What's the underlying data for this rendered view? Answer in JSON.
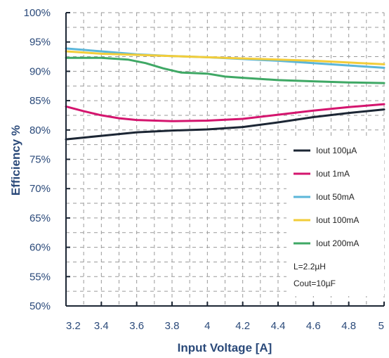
{
  "chart_data": {
    "type": "line",
    "xlabel": "Input Voltage [A]",
    "ylabel": "Efficiency %",
    "xlim": [
      3.2,
      5
    ],
    "ylim": [
      50,
      100
    ],
    "x_ticks": [
      "3.2",
      "3.4",
      "3.6",
      "3.8",
      "4",
      "4.2",
      "4.4",
      "4.6",
      "4.8",
      "5"
    ],
    "y_ticks": [
      "50%",
      "55%",
      "60%",
      "65%",
      "70%",
      "75%",
      "80%",
      "85%",
      "90%",
      "95%",
      "100%"
    ],
    "grid": "dashed",
    "legend_position": "bottom-right",
    "series": [
      {
        "name": "Iout 100µA",
        "color": "#1c2634",
        "points": [
          [
            3.2,
            78.4
          ],
          [
            3.4,
            79.0
          ],
          [
            3.6,
            79.6
          ],
          [
            3.8,
            79.9
          ],
          [
            4.0,
            80.1
          ],
          [
            4.2,
            80.5
          ],
          [
            4.4,
            81.3
          ],
          [
            4.6,
            82.2
          ],
          [
            4.8,
            82.9
          ],
          [
            5.0,
            83.5
          ]
        ]
      },
      {
        "name": "Iout 1mA",
        "color": "#d4156e",
        "points": [
          [
            3.2,
            84.0
          ],
          [
            3.3,
            83.2
          ],
          [
            3.4,
            82.5
          ],
          [
            3.5,
            82.0
          ],
          [
            3.6,
            81.7
          ],
          [
            3.8,
            81.5
          ],
          [
            4.0,
            81.6
          ],
          [
            4.2,
            81.9
          ],
          [
            4.4,
            82.6
          ],
          [
            4.6,
            83.3
          ],
          [
            4.8,
            83.9
          ],
          [
            5.0,
            84.4
          ]
        ]
      },
      {
        "name": "Iout 50mA",
        "color": "#5bb6d9",
        "points": [
          [
            3.2,
            93.9
          ],
          [
            3.4,
            93.4
          ],
          [
            3.6,
            92.9
          ],
          [
            3.8,
            92.6
          ],
          [
            4.0,
            92.4
          ],
          [
            4.2,
            92.1
          ],
          [
            4.4,
            91.8
          ],
          [
            4.6,
            91.4
          ],
          [
            4.8,
            91.0
          ],
          [
            5.0,
            90.6
          ]
        ]
      },
      {
        "name": "Iout 100mA",
        "color": "#f2cd3a",
        "points": [
          [
            3.2,
            93.4
          ],
          [
            3.4,
            93.0
          ],
          [
            3.6,
            92.8
          ],
          [
            3.8,
            92.6
          ],
          [
            4.0,
            92.4
          ],
          [
            4.2,
            92.2
          ],
          [
            4.4,
            92.0
          ],
          [
            4.6,
            91.8
          ],
          [
            4.8,
            91.5
          ],
          [
            5.0,
            91.2
          ]
        ]
      },
      {
        "name": "Iout 200mA",
        "color": "#3fa865",
        "points": [
          [
            3.2,
            92.3
          ],
          [
            3.4,
            92.3
          ],
          [
            3.55,
            92.0
          ],
          [
            3.65,
            91.4
          ],
          [
            3.75,
            90.5
          ],
          [
            3.85,
            89.8
          ],
          [
            4.0,
            89.6
          ],
          [
            4.1,
            89.1
          ],
          [
            4.2,
            88.9
          ],
          [
            4.4,
            88.5
          ],
          [
            4.6,
            88.3
          ],
          [
            4.8,
            88.1
          ],
          [
            5.0,
            88.0
          ]
        ]
      }
    ],
    "annotations": [
      "L=2.2µH",
      "Cout=10µF"
    ]
  }
}
